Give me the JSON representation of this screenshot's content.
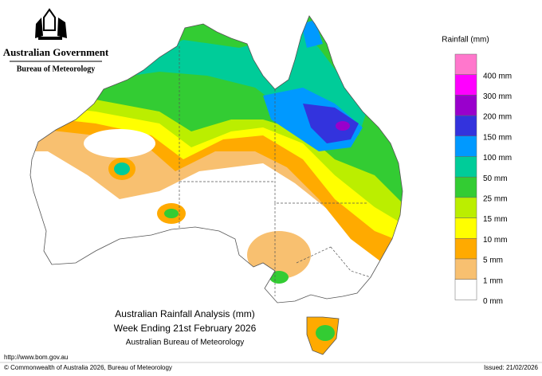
{
  "header": {
    "government": "Australian Government",
    "bureau": "Bureau of Meteorology"
  },
  "legend": {
    "title": "Rainfall (mm)",
    "items": [
      {
        "label": "400 mm",
        "color": "#ff00ff"
      },
      {
        "label": "300 mm",
        "color": "#9900cc"
      },
      {
        "label": "200 mm",
        "color": "#3333dd"
      },
      {
        "label": "150 mm",
        "color": "#0099ff"
      },
      {
        "label": "100 mm",
        "color": "#00cc99"
      },
      {
        "label": "50 mm",
        "color": "#33cc33"
      },
      {
        "label": "25 mm",
        "color": "#bbee00"
      },
      {
        "label": "15 mm",
        "color": "#ffff00"
      },
      {
        "label": "10 mm",
        "color": "#ffaa00"
      },
      {
        "label": "5 mm",
        "color": "#f8c070"
      },
      {
        "label": "1 mm",
        "color": "#ffffff"
      },
      {
        "label": "0 mm",
        "color": "#ffffff"
      }
    ],
    "top_color": "#ff77cc"
  },
  "caption": {
    "title": "Australian Rainfall Analysis (mm)",
    "period": "Week Ending 21st February 2026",
    "source": "Australian Bureau of Meteorology"
  },
  "footer": {
    "url": "http://www.bom.gov.au",
    "copyright": "© Commonwealth of Australia 2026, Bureau of Meteorology",
    "issued": "Issued: 21/02/2026"
  }
}
